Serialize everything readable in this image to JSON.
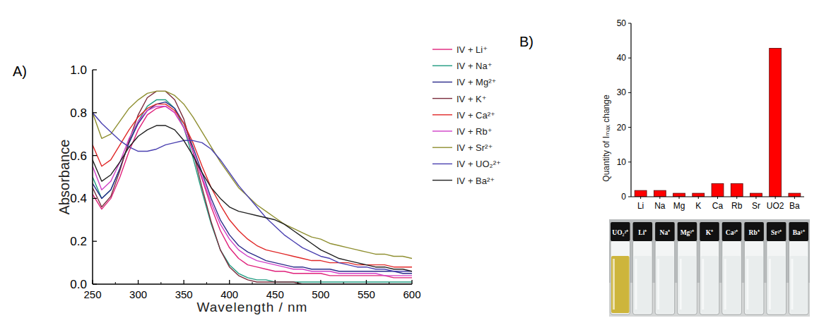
{
  "chart_data": [
    {
      "type": "line",
      "title": "A)",
      "x_label": "Wavelength / nm",
      "y_label": "Absorbance",
      "x": [
        250,
        260,
        270,
        280,
        290,
        300,
        310,
        320,
        330,
        340,
        350,
        360,
        370,
        380,
        390,
        400,
        410,
        420,
        430,
        440,
        450,
        460,
        470,
        480,
        490,
        500,
        510,
        520,
        530,
        540,
        550,
        560,
        570,
        580,
        590,
        600
      ],
      "xlim": [
        250,
        600
      ],
      "xticks": [
        250,
        300,
        350,
        400,
        450,
        500,
        550,
        600
      ],
      "ylim": [
        0,
        1
      ],
      "yticks": [
        {
          "value": 0,
          "label": "0.0"
        },
        0.2,
        0.4,
        0.6,
        0.8,
        {
          "value": 1,
          "label": "1.0"
        }
      ],
      "grid": false,
      "legend": "upper right",
      "series": [
        {
          "name": "IV + Li⁺",
          "color": "#e0207a",
          "values": [
            0.42,
            0.35,
            0.4,
            0.5,
            0.62,
            0.72,
            0.79,
            0.82,
            0.83,
            0.8,
            0.73,
            0.62,
            0.49,
            0.36,
            0.25,
            0.17,
            0.12,
            0.09,
            0.08,
            0.07,
            0.06,
            0.06,
            0.05,
            0.05,
            0.05,
            0.05,
            0.04,
            0.04,
            0.04,
            0.04,
            0.04,
            0.04,
            0.04,
            0.03,
            0.03,
            0.03
          ]
        },
        {
          "name": "IV + Na⁺",
          "color": "#1f9b80",
          "values": [
            0.5,
            0.4,
            0.44,
            0.54,
            0.66,
            0.76,
            0.83,
            0.86,
            0.86,
            0.82,
            0.73,
            0.59,
            0.43,
            0.28,
            0.16,
            0.09,
            0.05,
            0.03,
            0.02,
            0.02,
            0.01,
            0.01,
            0.01,
            0.01,
            0.01,
            0.01,
            0.01,
            0.01,
            0.01,
            0.01,
            0.01,
            0.01,
            0.01,
            0.01,
            0.01,
            0.01
          ]
        },
        {
          "name": "IV + Mg²⁺",
          "color": "#2b2b8a",
          "values": [
            0.47,
            0.4,
            0.44,
            0.54,
            0.66,
            0.75,
            0.81,
            0.84,
            0.85,
            0.82,
            0.75,
            0.64,
            0.52,
            0.4,
            0.3,
            0.23,
            0.18,
            0.15,
            0.13,
            0.11,
            0.1,
            0.09,
            0.08,
            0.08,
            0.07,
            0.07,
            0.07,
            0.06,
            0.06,
            0.06,
            0.06,
            0.06,
            0.06,
            0.06,
            0.05,
            0.05
          ]
        },
        {
          "name": "IV + K⁺",
          "color": "#7a2c3c",
          "values": [
            0.45,
            0.36,
            0.41,
            0.53,
            0.67,
            0.79,
            0.87,
            0.9,
            0.9,
            0.86,
            0.77,
            0.62,
            0.45,
            0.29,
            0.16,
            0.08,
            0.04,
            0.02,
            0.01,
            0.01,
            0.01,
            0.01,
            0.01,
            0,
            0,
            0,
            0,
            0,
            0,
            0,
            0,
            0,
            0,
            0,
            0,
            0
          ]
        },
        {
          "name": "IV + Ca²⁺",
          "color": "#e02828",
          "values": [
            0.65,
            0.55,
            0.58,
            0.65,
            0.72,
            0.78,
            0.82,
            0.84,
            0.84,
            0.81,
            0.75,
            0.66,
            0.55,
            0.45,
            0.37,
            0.3,
            0.25,
            0.21,
            0.18,
            0.16,
            0.15,
            0.14,
            0.13,
            0.12,
            0.11,
            0.11,
            0.1,
            0.1,
            0.1,
            0.09,
            0.09,
            0.09,
            0.09,
            0.08,
            0.08,
            0.08
          ]
        },
        {
          "name": "IV + Rb⁺",
          "color": "#d040c8",
          "values": [
            0.55,
            0.44,
            0.48,
            0.57,
            0.68,
            0.76,
            0.81,
            0.83,
            0.83,
            0.8,
            0.73,
            0.62,
            0.5,
            0.38,
            0.28,
            0.21,
            0.16,
            0.13,
            0.11,
            0.1,
            0.09,
            0.08,
            0.07,
            0.07,
            0.06,
            0.06,
            0.06,
            0.05,
            0.05,
            0.05,
            0.05,
            0.05,
            0.04,
            0.04,
            0.04,
            0.04
          ]
        },
        {
          "name": "IV + Sr²⁺",
          "color": "#8f8f30",
          "values": [
            0.8,
            0.68,
            0.7,
            0.76,
            0.82,
            0.86,
            0.89,
            0.9,
            0.9,
            0.88,
            0.84,
            0.78,
            0.71,
            0.64,
            0.57,
            0.51,
            0.45,
            0.41,
            0.37,
            0.34,
            0.31,
            0.28,
            0.26,
            0.24,
            0.22,
            0.21,
            0.19,
            0.18,
            0.17,
            0.16,
            0.15,
            0.14,
            0.14,
            0.13,
            0.13,
            0.12
          ]
        },
        {
          "name": "IV + UO₂²⁺",
          "color": "#4a40b0",
          "values": [
            0.8,
            0.75,
            0.71,
            0.67,
            0.64,
            0.62,
            0.62,
            0.63,
            0.65,
            0.66,
            0.67,
            0.67,
            0.66,
            0.63,
            0.58,
            0.52,
            0.46,
            0.41,
            0.36,
            0.31,
            0.27,
            0.23,
            0.2,
            0.17,
            0.15,
            0.13,
            0.12,
            0.1,
            0.09,
            0.08,
            0.08,
            0.07,
            0.07,
            0.06,
            0.06,
            0.06
          ]
        },
        {
          "name": "IV + Ba²⁺",
          "color": "#202020",
          "values": [
            0.58,
            0.48,
            0.51,
            0.57,
            0.64,
            0.69,
            0.72,
            0.74,
            0.74,
            0.72,
            0.67,
            0.6,
            0.52,
            0.45,
            0.4,
            0.36,
            0.34,
            0.33,
            0.32,
            0.31,
            0.3,
            0.28,
            0.25,
            0.22,
            0.19,
            0.16,
            0.14,
            0.12,
            0.11,
            0.1,
            0.09,
            0.08,
            0.08,
            0.07,
            0.07,
            0.06
          ]
        }
      ]
    },
    {
      "type": "bar",
      "title": "B)",
      "y_label": "Quantity of Iₘₐₓ change",
      "categories": [
        "Li",
        "Na",
        "Mg",
        "K",
        "Ca",
        "Rb",
        "Sr",
        "UO2",
        "Ba"
      ],
      "values": [
        1.8,
        1.8,
        1,
        1,
        3.8,
        3.8,
        1,
        42.8,
        1
      ],
      "color": "#ff0000",
      "ylim": [
        0,
        50
      ],
      "yticks": [
        0,
        10,
        20,
        30,
        40,
        50
      ],
      "grid": false
    }
  ],
  "photo": {
    "vials": [
      {
        "label": "UO₂²⁺",
        "color": "#cdb53c"
      },
      {
        "label": "Li⁺",
        "color": "#e9eded"
      },
      {
        "label": "Na⁺",
        "color": "#e9eded"
      },
      {
        "label": "Mg²⁺",
        "color": "#e9eded"
      },
      {
        "label": "K⁺",
        "color": "#e9eded"
      },
      {
        "label": "Ca²⁺",
        "color": "#e9eded"
      },
      {
        "label": "Rb⁺",
        "color": "#e9eded"
      },
      {
        "label": "Sr²⁺",
        "color": "#e9eded"
      },
      {
        "label": "Ba²⁺",
        "color": "#e9eded"
      }
    ]
  }
}
